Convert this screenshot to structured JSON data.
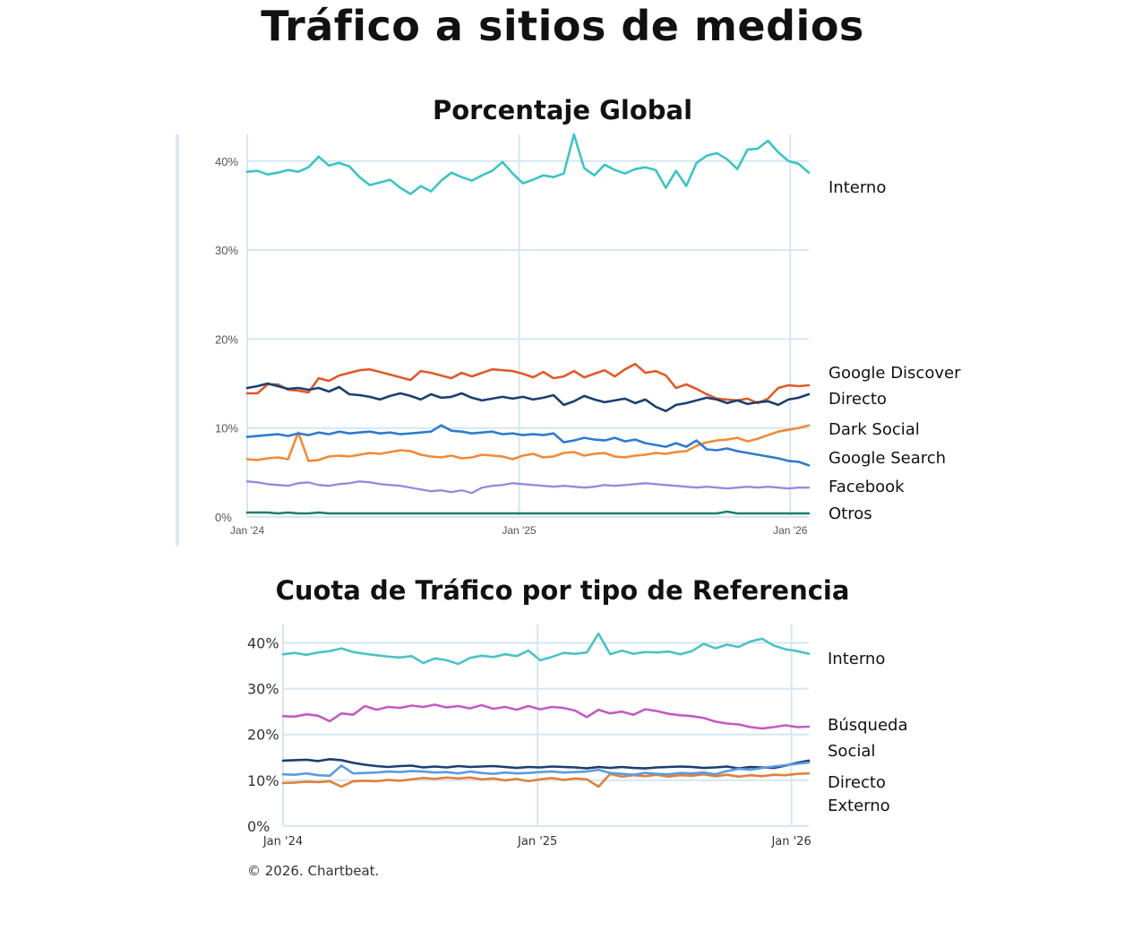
{
  "title": "Tráfico a sitios de medios",
  "footer": "© 2026. Chartbeat.",
  "chart_data": [
    {
      "type": "line",
      "title": "Porcentaje Global",
      "y_ticks": [
        "0%",
        "10%",
        "20%",
        "30%",
        "40%"
      ],
      "ylim": [
        0,
        43
      ],
      "x_ticks": [
        "Jan '24",
        "Jan '25",
        "Jan '26"
      ],
      "x_range": [
        "2024-01-01",
        "2026-01-26"
      ],
      "grid": true,
      "legend": "right",
      "series": [
        {
          "name": "Interno",
          "color": "#3cc4c4",
          "width": 2.6,
          "values": [
            38.8,
            38.9,
            38.5,
            38.7,
            39.0,
            38.8,
            39.3,
            40.5,
            39.5,
            39.8,
            39.4,
            38.2,
            37.3,
            37.6,
            37.9,
            37.0,
            36.3,
            37.2,
            36.6,
            37.8,
            38.7,
            38.2,
            37.8,
            38.4,
            38.9,
            39.9,
            38.6,
            37.5,
            37.9,
            38.4,
            38.2,
            38.6,
            43.0,
            39.2,
            38.4,
            39.6,
            39.0,
            38.6,
            39.1,
            39.3,
            39.0,
            37.0,
            38.9,
            37.2,
            39.8,
            40.6,
            40.9,
            40.2,
            39.1,
            41.3,
            41.4,
            42.3,
            41.0,
            40.0,
            39.7,
            38.7
          ]
        },
        {
          "name": "Google Discover",
          "color": "#e05a2b",
          "width": 2.6,
          "values": [
            13.9,
            13.9,
            14.9,
            14.9,
            14.3,
            14.2,
            14.0,
            15.6,
            15.3,
            15.9,
            16.2,
            16.5,
            16.6,
            16.3,
            16.0,
            15.7,
            15.4,
            16.4,
            16.2,
            15.9,
            15.6,
            16.2,
            15.8,
            16.2,
            16.6,
            16.5,
            16.4,
            16.1,
            15.7,
            16.3,
            15.6,
            15.8,
            16.4,
            15.7,
            16.1,
            16.5,
            15.8,
            16.6,
            17.2,
            16.2,
            16.4,
            15.9,
            14.5,
            14.9,
            14.4,
            13.8,
            13.3,
            13.2,
            13.1,
            13.3,
            12.8,
            13.3,
            14.5,
            14.8,
            14.7,
            14.8
          ]
        },
        {
          "name": "Directo",
          "color": "#1c3f6e",
          "width": 2.6,
          "values": [
            14.5,
            14.7,
            15.0,
            14.7,
            14.4,
            14.5,
            14.3,
            14.5,
            14.1,
            14.6,
            13.8,
            13.7,
            13.5,
            13.2,
            13.6,
            13.9,
            13.6,
            13.2,
            13.8,
            13.4,
            13.5,
            13.9,
            13.4,
            13.1,
            13.3,
            13.5,
            13.3,
            13.5,
            13.2,
            13.4,
            13.7,
            12.6,
            13.0,
            13.6,
            13.2,
            12.9,
            13.1,
            13.3,
            12.8,
            13.2,
            12.4,
            11.9,
            12.6,
            12.8,
            13.1,
            13.4,
            13.2,
            12.8,
            13.1,
            12.7,
            12.9,
            13.0,
            12.6,
            13.2,
            13.4,
            13.8
          ]
        },
        {
          "name": "Dark Social",
          "color": "#f08a3a",
          "width": 2.6,
          "values": [
            6.5,
            6.4,
            6.6,
            6.7,
            6.5,
            9.5,
            6.3,
            6.4,
            6.8,
            6.9,
            6.8,
            7.0,
            7.2,
            7.1,
            7.3,
            7.5,
            7.4,
            7.0,
            6.8,
            6.7,
            6.9,
            6.6,
            6.7,
            7.0,
            6.9,
            6.8,
            6.5,
            6.9,
            7.1,
            6.7,
            6.8,
            7.2,
            7.3,
            6.9,
            7.1,
            7.2,
            6.8,
            6.7,
            6.9,
            7.0,
            7.2,
            7.1,
            7.3,
            7.4,
            8.0,
            8.4,
            8.6,
            8.7,
            8.9,
            8.5,
            8.8,
            9.2,
            9.6,
            9.8,
            10.0,
            10.3
          ]
        },
        {
          "name": "Google Search",
          "color": "#2f7ad0",
          "width": 2.6,
          "values": [
            9.0,
            9.1,
            9.2,
            9.3,
            9.1,
            9.4,
            9.2,
            9.5,
            9.3,
            9.6,
            9.4,
            9.5,
            9.6,
            9.4,
            9.5,
            9.3,
            9.4,
            9.5,
            9.6,
            10.3,
            9.7,
            9.6,
            9.4,
            9.5,
            9.6,
            9.3,
            9.4,
            9.2,
            9.3,
            9.2,
            9.4,
            8.4,
            8.6,
            8.9,
            8.7,
            8.6,
            8.9,
            8.5,
            8.7,
            8.3,
            8.1,
            7.9,
            8.3,
            7.9,
            8.6,
            7.6,
            7.5,
            7.7,
            7.4,
            7.2,
            7.0,
            6.8,
            6.6,
            6.3,
            6.2,
            5.8
          ]
        },
        {
          "name": "Facebook",
          "color": "#9c86de",
          "width": 2.3,
          "values": [
            4.0,
            3.9,
            3.7,
            3.6,
            3.5,
            3.8,
            3.9,
            3.6,
            3.5,
            3.7,
            3.8,
            4.0,
            3.9,
            3.7,
            3.6,
            3.5,
            3.3,
            3.1,
            2.9,
            3.0,
            2.8,
            3.0,
            2.7,
            3.3,
            3.5,
            3.6,
            3.8,
            3.7,
            3.6,
            3.5,
            3.4,
            3.5,
            3.4,
            3.3,
            3.4,
            3.6,
            3.5,
            3.6,
            3.7,
            3.8,
            3.7,
            3.6,
            3.5,
            3.4,
            3.3,
            3.4,
            3.3,
            3.2,
            3.3,
            3.4,
            3.3,
            3.4,
            3.3,
            3.2,
            3.3,
            3.3
          ]
        },
        {
          "name": "Otros",
          "color": "#1d7f6a",
          "width": 2.6,
          "values": [
            0.5,
            0.5,
            0.5,
            0.4,
            0.5,
            0.4,
            0.4,
            0.5,
            0.4,
            0.4,
            0.4,
            0.4,
            0.4,
            0.4,
            0.4,
            0.4,
            0.4,
            0.4,
            0.4,
            0.4,
            0.4,
            0.4,
            0.4,
            0.4,
            0.4,
            0.4,
            0.4,
            0.4,
            0.4,
            0.4,
            0.4,
            0.4,
            0.4,
            0.4,
            0.4,
            0.4,
            0.4,
            0.4,
            0.4,
            0.4,
            0.4,
            0.4,
            0.4,
            0.4,
            0.4,
            0.4,
            0.4,
            0.6,
            0.4,
            0.4,
            0.4,
            0.4,
            0.4,
            0.4,
            0.4,
            0.4
          ]
        }
      ]
    },
    {
      "type": "line",
      "title": "Cuota de Tráfico por tipo de Referencia",
      "y_ticks": [
        "0%",
        "10%",
        "20%",
        "30%",
        "40%"
      ],
      "ylim": [
        0,
        44
      ],
      "x_ticks": [
        "Jan '24",
        "Jan '25",
        "Jan '26"
      ],
      "x_range": [
        "2024-01-01",
        "2026-01-26"
      ],
      "grid": true,
      "legend": "right",
      "series": [
        {
          "name": "Interno",
          "color": "#4cc3c3",
          "width": 2.6,
          "values": [
            37.5,
            37.8,
            37.4,
            37.9,
            38.2,
            38.8,
            38.0,
            37.6,
            37.3,
            37.0,
            36.8,
            37.1,
            35.6,
            36.6,
            36.2,
            35.4,
            36.7,
            37.2,
            36.9,
            37.5,
            37.1,
            38.3,
            36.2,
            36.9,
            37.8,
            37.6,
            37.9,
            42.0,
            37.5,
            38.3,
            37.6,
            38.0,
            37.9,
            38.1,
            37.5,
            38.2,
            39.8,
            38.8,
            39.6,
            39.1,
            40.3,
            40.9,
            39.4,
            38.6,
            38.2,
            37.6
          ]
        },
        {
          "name": "Búsqueda",
          "color": "#c25cc2",
          "width": 2.6,
          "values": [
            24.0,
            23.9,
            24.4,
            24.1,
            22.9,
            24.6,
            24.3,
            26.2,
            25.4,
            26.0,
            25.8,
            26.3,
            26.0,
            26.5,
            25.9,
            26.2,
            25.7,
            26.4,
            25.6,
            26.0,
            25.4,
            26.2,
            25.5,
            26.0,
            25.8,
            25.2,
            23.8,
            25.4,
            24.6,
            25.0,
            24.3,
            25.5,
            25.1,
            24.5,
            24.2,
            24.0,
            23.6,
            22.8,
            22.4,
            22.2,
            21.6,
            21.3,
            21.6,
            22.0,
            21.6,
            21.7
          ]
        },
        {
          "name": "Social",
          "color": "#1c3f6e",
          "width": 2.6,
          "values": [
            14.3,
            14.4,
            14.5,
            14.2,
            14.6,
            14.4,
            13.8,
            13.4,
            13.1,
            12.9,
            13.1,
            13.2,
            12.8,
            13.0,
            12.8,
            13.1,
            12.9,
            13.0,
            13.1,
            12.9,
            12.7,
            12.9,
            12.8,
            13.0,
            12.9,
            12.8,
            12.6,
            12.9,
            12.7,
            12.9,
            12.7,
            12.6,
            12.8,
            12.9,
            13.0,
            12.9,
            12.7,
            12.8,
            13.0,
            12.6,
            12.9,
            12.8,
            12.7,
            13.2,
            13.8,
            14.3
          ]
        },
        {
          "name": "Directo",
          "color": "#e0813a",
          "width": 2.6,
          "values": [
            9.4,
            9.5,
            9.7,
            9.6,
            9.8,
            8.6,
            9.8,
            9.9,
            9.8,
            10.1,
            9.9,
            10.2,
            10.5,
            10.3,
            10.6,
            10.4,
            10.6,
            10.2,
            10.4,
            10.0,
            10.3,
            9.8,
            10.2,
            10.5,
            10.1,
            10.4,
            10.2,
            8.6,
            11.4,
            10.8,
            11.1,
            10.9,
            11.2,
            10.8,
            11.1,
            11.0,
            11.3,
            10.9,
            11.2,
            10.8,
            11.1,
            10.9,
            11.2,
            11.1,
            11.4,
            11.5
          ]
        },
        {
          "name": "Externo",
          "color": "#5b9be0",
          "width": 2.6,
          "values": [
            11.3,
            11.2,
            11.5,
            11.1,
            11.0,
            13.2,
            11.5,
            11.6,
            11.7,
            11.9,
            11.8,
            12.0,
            11.9,
            11.7,
            11.8,
            11.5,
            11.9,
            11.6,
            11.4,
            11.7,
            11.5,
            11.6,
            11.8,
            11.9,
            11.7,
            11.8,
            11.9,
            12.3,
            11.6,
            11.4,
            11.2,
            11.6,
            11.4,
            11.3,
            11.6,
            11.5,
            11.7,
            11.3,
            12.0,
            12.5,
            12.3,
            12.7,
            13.0,
            13.3,
            13.6,
            13.9
          ]
        }
      ]
    }
  ]
}
